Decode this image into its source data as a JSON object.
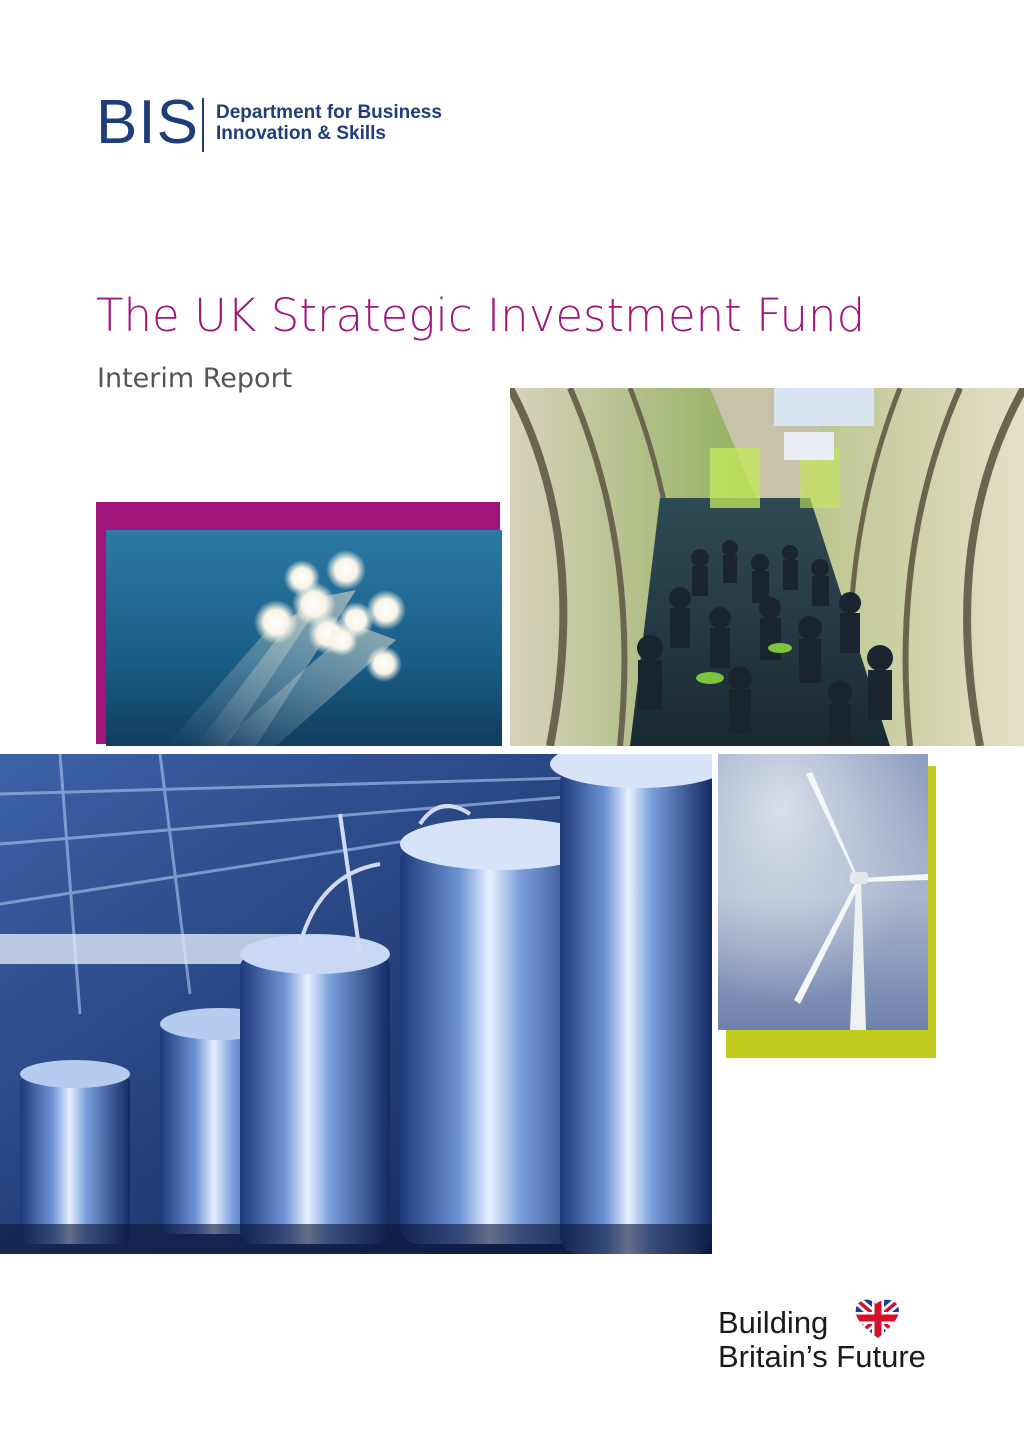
{
  "logo": {
    "wordmark": "BIS",
    "department": "Department for Business\nInnovation & Skills",
    "color": "#1f3d7a"
  },
  "cover": {
    "title": "The UK Strategic Investment Fund",
    "subtitle": "Interim Report",
    "title_color": "#a0157c"
  },
  "images": [
    {
      "name": "fibre-optic-lights-photo",
      "icon": "fibre-optic-lights"
    },
    {
      "name": "event-crowd-photo",
      "icon": "crowd-in-tunnel-hall"
    },
    {
      "name": "industrial-tanks-photo",
      "icon": "steel-tanks"
    },
    {
      "name": "wind-turbine-photo",
      "icon": "wind-turbine"
    }
  ],
  "accents": {
    "magenta": "#a0157c",
    "lime": "#c2cc1d"
  },
  "footer_logo": {
    "line1": "Building",
    "line2": "Britain’s Future",
    "icon": "union-flag-heart-icon"
  }
}
